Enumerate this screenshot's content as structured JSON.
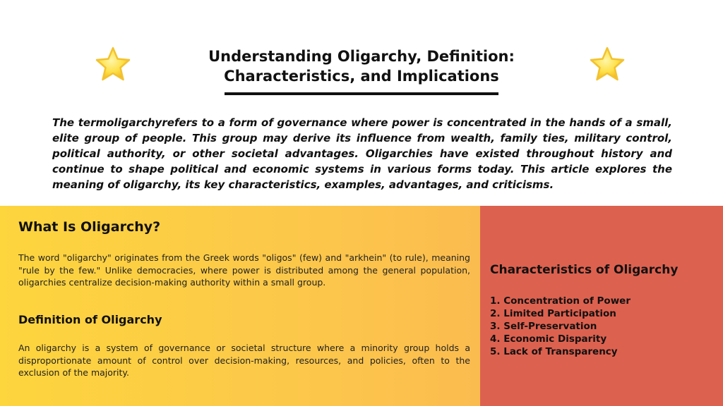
{
  "page": {
    "title_line1": "Understanding Oligarchy, Definition:",
    "title_line2": "Characteristics, and Implications",
    "intro": "The termoligarchyrefers to a form of governance where power is concentrated in the hands of a small, elite group of people. This group may derive its influence from wealth, family ties, military control, political authority, or other societal advantages. Oligarchies have existed throughout history and continue to shape political and economic systems in various forms today. This article explores the meaning of oligarchy, its key characteristics, examples, advantages, and criticisms."
  },
  "what_is": {
    "heading": "What Is Oligarchy?",
    "body": "The word \"oligarchy\" originates from the Greek words \"oligos\" (few) and \"arkhein\" (to rule), meaning \"rule by the few.\" Unlike democracies, where power is distributed among the general population, oligarchies centralize decision-making authority within a small group."
  },
  "definition": {
    "heading": "Definition of Oligarchy",
    "body": "An oligarchy is a system of governance or societal structure where a minority group holds a disproportionate amount of control over decision-making, resources, and policies, often to the exclusion of the majority."
  },
  "characteristics": {
    "heading": "Characteristics of Oligarchy",
    "items": [
      "1. Concentration of Power",
      "2. Limited Participation",
      "3. Self-Preservation",
      "4. Economic Disparity",
      "5. Lack of Transparency"
    ]
  },
  "colors": {
    "left_panel": "#fdd53d",
    "right_panel": "#dd614f",
    "star": "#fde047"
  },
  "icons": [
    "star-icon",
    "star-icon"
  ]
}
